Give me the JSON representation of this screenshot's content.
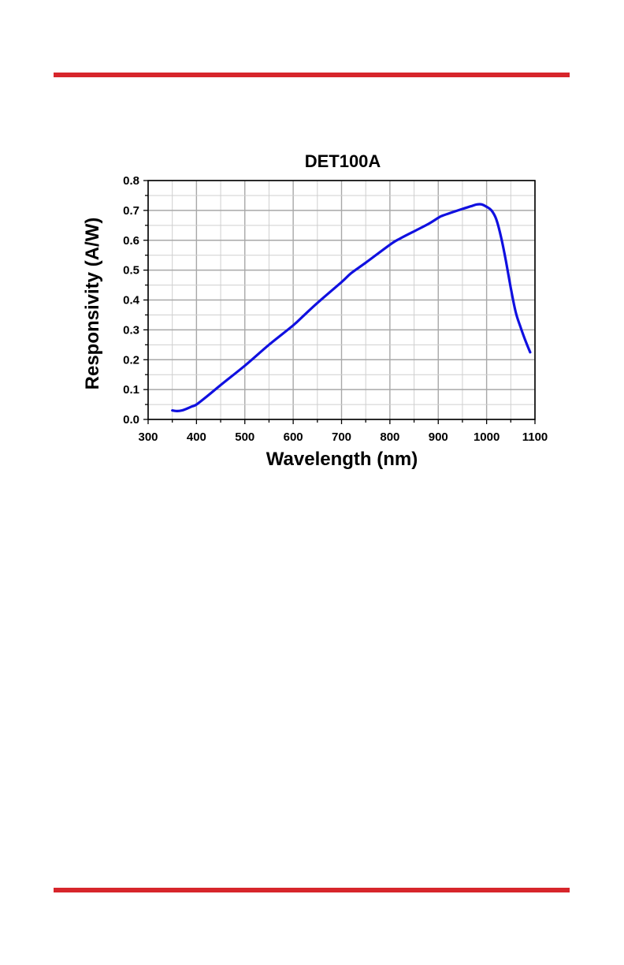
{
  "page": {
    "rule_color": "#d7262b"
  },
  "chart_data": {
    "type": "line",
    "title": "DET100A",
    "xlabel": "Wavelength (nm)",
    "ylabel": "Responsivity (A/W)",
    "xlim": [
      300,
      1100
    ],
    "ylim": [
      0.0,
      0.8
    ],
    "x_ticks": [
      300,
      400,
      500,
      600,
      700,
      800,
      900,
      1000,
      1100
    ],
    "y_ticks": [
      "0.0",
      "0.1",
      "0.2",
      "0.3",
      "0.4",
      "0.5",
      "0.6",
      "0.7",
      "0.8"
    ],
    "grid": true,
    "line_color": "#1010e0",
    "series": [
      {
        "x": [
          350,
          360,
          370,
          380,
          390,
          400,
          420,
          450,
          500,
          550,
          600,
          620,
          650,
          700,
          720,
          750,
          800,
          820,
          850,
          880,
          900,
          910,
          950,
          970,
          980,
          990,
          1000,
          1010,
          1020,
          1030,
          1040,
          1050,
          1060,
          1070,
          1080,
          1090
        ],
        "y": [
          0.03,
          0.028,
          0.03,
          0.036,
          0.043,
          0.05,
          0.075,
          0.115,
          0.18,
          0.25,
          0.315,
          0.345,
          0.39,
          0.46,
          0.49,
          0.525,
          0.585,
          0.605,
          0.63,
          0.655,
          0.675,
          0.683,
          0.705,
          0.715,
          0.72,
          0.72,
          0.712,
          0.7,
          0.67,
          0.61,
          0.53,
          0.44,
          0.36,
          0.31,
          0.265,
          0.225
        ]
      }
    ]
  }
}
